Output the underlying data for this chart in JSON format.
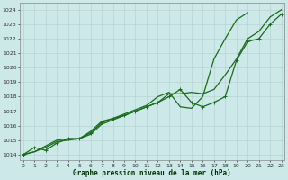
{
  "title": "Graphe pression niveau de la mer (hPa)",
  "background_color": "#cce8e8",
  "grid_color": "#b0d0d0",
  "line_color": "#1a6b1a",
  "x_ticks": [
    0,
    1,
    2,
    3,
    4,
    5,
    6,
    7,
    8,
    9,
    10,
    11,
    12,
    13,
    14,
    15,
    16,
    17,
    18,
    19,
    20,
    21,
    22,
    23
  ],
  "y_ticks": [
    1014,
    1015,
    1016,
    1017,
    1018,
    1019,
    1020,
    1021,
    1022,
    1023,
    1024
  ],
  "ylim": [
    1013.6,
    1024.5
  ],
  "xlim": [
    -0.3,
    23.3
  ],
  "series": [
    {
      "x": [
        0,
        1,
        2,
        3,
        4,
        5,
        6,
        7,
        8,
        9,
        10,
        11,
        12,
        13,
        14,
        15,
        16,
        17,
        18,
        19,
        20,
        21,
        22,
        23
      ],
      "y": [
        1014.0,
        1014.5,
        1014.3,
        1014.8,
        1015.1,
        1015.1,
        1015.5,
        1016.2,
        1016.5,
        1016.7,
        1017.0,
        1017.3,
        1017.6,
        1018.0,
        1018.5,
        1017.6,
        1017.3,
        1017.6,
        1018.0,
        1020.5,
        1021.8,
        1022.0,
        1023.0,
        1023.7
      ],
      "markers": true,
      "linewidth": 0.9
    },
    {
      "x": [
        0,
        1,
        2,
        3,
        4,
        5,
        6,
        7,
        8,
        9,
        10,
        11,
        12,
        13,
        14,
        15,
        16,
        17,
        18,
        19,
        20,
        21,
        22,
        23
      ],
      "y": [
        1014.0,
        1014.2,
        1014.5,
        1014.9,
        1015.0,
        1015.1,
        1015.4,
        1016.1,
        1016.4,
        1016.7,
        1017.0,
        1017.3,
        1017.6,
        1018.2,
        1018.2,
        1018.3,
        1018.2,
        1018.5,
        1019.5,
        1020.6,
        1022.0,
        1022.5,
        1023.5,
        1024.0
      ],
      "markers": false,
      "linewidth": 0.9
    },
    {
      "x": [
        0,
        1,
        2,
        3,
        4,
        5,
        6,
        7,
        8,
        9,
        10,
        11,
        12,
        13,
        14,
        15,
        16,
        17,
        18,
        19,
        20,
        21,
        22,
        23
      ],
      "y": [
        1014.0,
        1014.2,
        1014.6,
        1015.0,
        1015.1,
        1015.1,
        1015.6,
        1016.3,
        1016.5,
        1016.8,
        1017.1,
        1017.4,
        1018.0,
        1018.3,
        1017.3,
        1017.2,
        1018.0,
        1020.6,
        1022.0,
        1023.3,
        1023.8,
        null,
        null,
        null
      ],
      "markers": false,
      "linewidth": 0.9
    }
  ]
}
